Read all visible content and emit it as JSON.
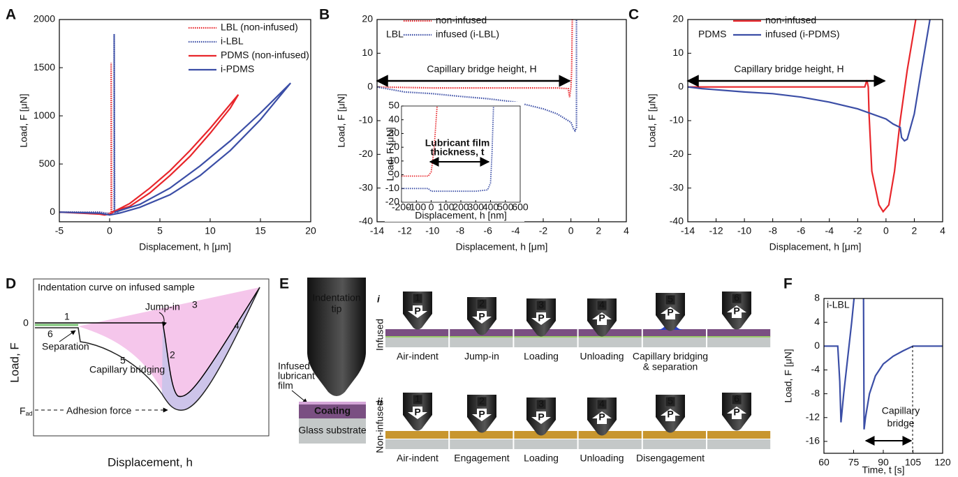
{
  "panels": [
    "A",
    "B",
    "C",
    "D",
    "E",
    "F"
  ],
  "chart_data": [
    {
      "type": "line",
      "xlabel": "Displacement, h [μm]",
      "ylabel": "Load, F [μN]",
      "xlim": [
        -5,
        20
      ],
      "ylim": [
        -100,
        2000
      ],
      "xticks": [
        -5,
        0,
        5,
        10,
        15,
        20
      ],
      "yticks": [
        0,
        500,
        1000,
        1500,
        2000
      ],
      "legend": "upper right",
      "series": [
        {
          "name": "LBL (non-infused)",
          "color": "#e8262b",
          "linestyle": "dotted",
          "x": [
            -5,
            -1,
            -0.3,
            0,
            0.1,
            0.15,
            0.15,
            0.2,
            0.5
          ],
          "values": [
            0,
            0,
            -10,
            -10,
            -5,
            0,
            1550,
            0,
            0
          ]
        },
        {
          "name": "i-LBL",
          "color": "#3b4ea6",
          "linestyle": "dotted",
          "x": [
            -5,
            -1,
            0,
            0.3,
            0.45,
            0.45,
            0.5,
            1
          ],
          "values": [
            0,
            0,
            -15,
            -10,
            0,
            1850,
            0,
            0
          ]
        },
        {
          "name": "PDMS (non-infused)",
          "color": "#e8262b",
          "linestyle": "solid",
          "x": [
            0.2,
            2,
            4,
            6,
            8,
            10,
            12,
            12.8,
            12,
            10,
            8,
            6,
            4,
            2,
            0.5,
            0,
            -0.5,
            -1,
            -5
          ],
          "values": [
            0,
            60,
            200,
            380,
            580,
            820,
            1080,
            1220,
            1120,
            870,
            640,
            430,
            250,
            90,
            10,
            -20,
            -30,
            -20,
            0
          ]
        },
        {
          "name": "i-PDMS",
          "color": "#3b4ea6",
          "linestyle": "solid",
          "x": [
            0.5,
            3,
            6,
            9,
            12,
            15,
            18,
            15,
            12,
            9,
            6,
            3,
            1,
            0,
            -1,
            -5
          ],
          "values": [
            0,
            80,
            250,
            480,
            740,
            1030,
            1340,
            960,
            640,
            380,
            180,
            50,
            -10,
            -30,
            -10,
            0
          ]
        }
      ]
    },
    {
      "type": "line",
      "xlabel": "Displacement, h [μm]",
      "ylabel": "Load, F [μN]",
      "xlim": [
        -14,
        4
      ],
      "ylim": [
        -40,
        20
      ],
      "xticks": [
        -14,
        -12,
        -10,
        -8,
        -6,
        -4,
        -2,
        0,
        2,
        4
      ],
      "yticks": [
        -40,
        -30,
        -20,
        -10,
        0,
        10,
        20
      ],
      "legend": "upper center",
      "annotations": [
        "LBL",
        "Capillary bridge height, H"
      ],
      "series": [
        {
          "name": "non-infused",
          "color": "#e8262b",
          "linestyle": "dotted",
          "x": [
            -14,
            -10,
            -5,
            -1,
            -0.2,
            -0.1,
            0,
            0.05,
            0.1
          ],
          "values": [
            0,
            -0.3,
            -0.3,
            -0.3,
            -0.5,
            -3,
            0,
            5,
            20
          ]
        },
        {
          "name": "infused (i-LBL)",
          "color": "#3b4ea6",
          "linestyle": "dotted",
          "x": [
            -14,
            -12,
            -10,
            -8,
            -6,
            -4,
            -2,
            -1,
            0,
            0.2,
            0.3,
            0.4,
            0.4
          ],
          "values": [
            0,
            -1.5,
            -2,
            -2.8,
            -3.5,
            -4.5,
            -6.5,
            -8,
            -10.5,
            -12.5,
            -13,
            -12,
            20
          ]
        }
      ]
    },
    {
      "type": "line",
      "xlabel": "Displacement, h [nm]",
      "ylabel": "Load, F [μN]",
      "xlim": [
        -200,
        600
      ],
      "ylim": [
        -20,
        50
      ],
      "xticks": [
        -200,
        -100,
        0,
        100,
        200,
        300,
        400,
        500,
        600
      ],
      "yticks": [
        -20,
        -10,
        0,
        10,
        20,
        30,
        40,
        50
      ],
      "annotations": [
        "Lubricant film",
        "thickness, t"
      ],
      "series": [
        {
          "color": "#e8262b",
          "linestyle": "dotted",
          "x": [
            -200,
            -100,
            -20,
            0,
            10,
            20,
            30,
            40
          ],
          "values": [
            -1,
            -1,
            -1,
            2,
            10,
            20,
            35,
            50
          ]
        },
        {
          "color": "#3b4ea6",
          "linestyle": "dotted",
          "x": [
            -200,
            -20,
            0,
            100,
            200,
            300,
            380,
            400,
            410,
            420
          ],
          "values": [
            -10,
            -10,
            -12,
            -12,
            -12,
            -12,
            -11,
            -6,
            15,
            50
          ]
        }
      ]
    },
    {
      "type": "line",
      "xlabel": "Displacement, h [μm]",
      "ylabel": "Load, F [μN]",
      "xlim": [
        -14,
        4
      ],
      "ylim": [
        -40,
        20
      ],
      "xticks": [
        -14,
        -12,
        -10,
        -8,
        -6,
        -4,
        -2,
        0,
        2,
        4
      ],
      "yticks": [
        -40,
        -30,
        -20,
        -10,
        0,
        10,
        20
      ],
      "legend": "upper center",
      "annotations": [
        "PDMS",
        "Capillary bridge height, H"
      ],
      "series": [
        {
          "name": "non-infused",
          "color": "#e8262b",
          "linestyle": "solid",
          "x": [
            -14,
            -2,
            -1.5,
            -1.35,
            -1.25,
            -1.2,
            -1,
            -0.5,
            -0.2,
            0.2,
            0.6,
            1,
            1.5,
            2.1
          ],
          "values": [
            0,
            0,
            0,
            2,
            0,
            -8,
            -25,
            -35,
            -37,
            -35,
            -25,
            -10,
            5,
            20
          ]
        },
        {
          "name": "infused (i-PDMS)",
          "color": "#3b4ea6",
          "linestyle": "solid",
          "x": [
            -14,
            -13,
            -10,
            -8,
            -6,
            -4,
            -2,
            0,
            0.5,
            1,
            1.1,
            1.3,
            1.5,
            2,
            2.5,
            3.1
          ],
          "values": [
            0,
            -0.5,
            -1.5,
            -2,
            -3,
            -4.5,
            -6.5,
            -9.5,
            -11,
            -12,
            -15,
            -16,
            -15.5,
            -8,
            5,
            20
          ]
        }
      ]
    },
    {
      "type": "line",
      "xlabel": "Time, t [s]",
      "ylabel": "Load, F [μN]",
      "xlim": [
        60,
        120
      ],
      "ylim": [
        -18,
        8
      ],
      "xticks": [
        60,
        75,
        90,
        105,
        120
      ],
      "yticks": [
        -16,
        -12,
        -8,
        -4,
        0,
        4,
        8
      ],
      "annotations": [
        "i-LBL",
        "Capillary",
        "bridge"
      ],
      "series": [
        {
          "color": "#3b4ea6",
          "linestyle": "solid",
          "x": [
            60,
            67,
            68,
            68.6,
            70,
            72,
            74,
            75.2,
            null,
            80,
            80.3,
            81,
            83,
            86,
            90,
            95,
            100,
            105,
            120
          ],
          "values": [
            0,
            0,
            -6,
            -12.8,
            -8,
            -2,
            4,
            8,
            null,
            8,
            -14,
            -12,
            -8,
            -5,
            -3,
            -1.7,
            -0.8,
            0,
            0
          ]
        }
      ]
    }
  ],
  "panel_d": {
    "title": "Indentation curve on infused sample",
    "ylabel": "Load, F",
    "xlabel": "Displacement, h",
    "zero": "0",
    "step_numbers": [
      "1",
      "2",
      "3",
      "4",
      "5",
      "6"
    ],
    "separation": "Separation",
    "capillary_bridging": "Capillary bridging",
    "jump_in": "Jump-in",
    "adhesion_force": "Adhesion force",
    "fad": "F",
    "fad_sub": "ad"
  },
  "panel_e": {
    "tip_label": [
      "Indentation",
      "tip"
    ],
    "film_label": [
      "Infused",
      "lubricant",
      "film"
    ],
    "coating": "Coating",
    "substrate": "Glass substrate",
    "step_numbers": [
      "1",
      "2",
      "3",
      "4",
      "5",
      "6"
    ],
    "force_symbol": "P",
    "rows": [
      {
        "numeral": "i",
        "label": "Infused",
        "steps": [
          [
            "Air-indent"
          ],
          [
            "Jump-in"
          ],
          [
            "Loading"
          ],
          [
            "Unloading"
          ],
          [
            "Capillary bridging",
            "& separation"
          ]
        ]
      },
      {
        "numeral": "ii",
        "label": "Non-infused",
        "steps": [
          [
            "Air-indent"
          ],
          [
            "Engagement"
          ],
          [
            "Loading"
          ],
          [
            "Unloading"
          ],
          [
            "Disengagement"
          ]
        ]
      }
    ]
  }
}
